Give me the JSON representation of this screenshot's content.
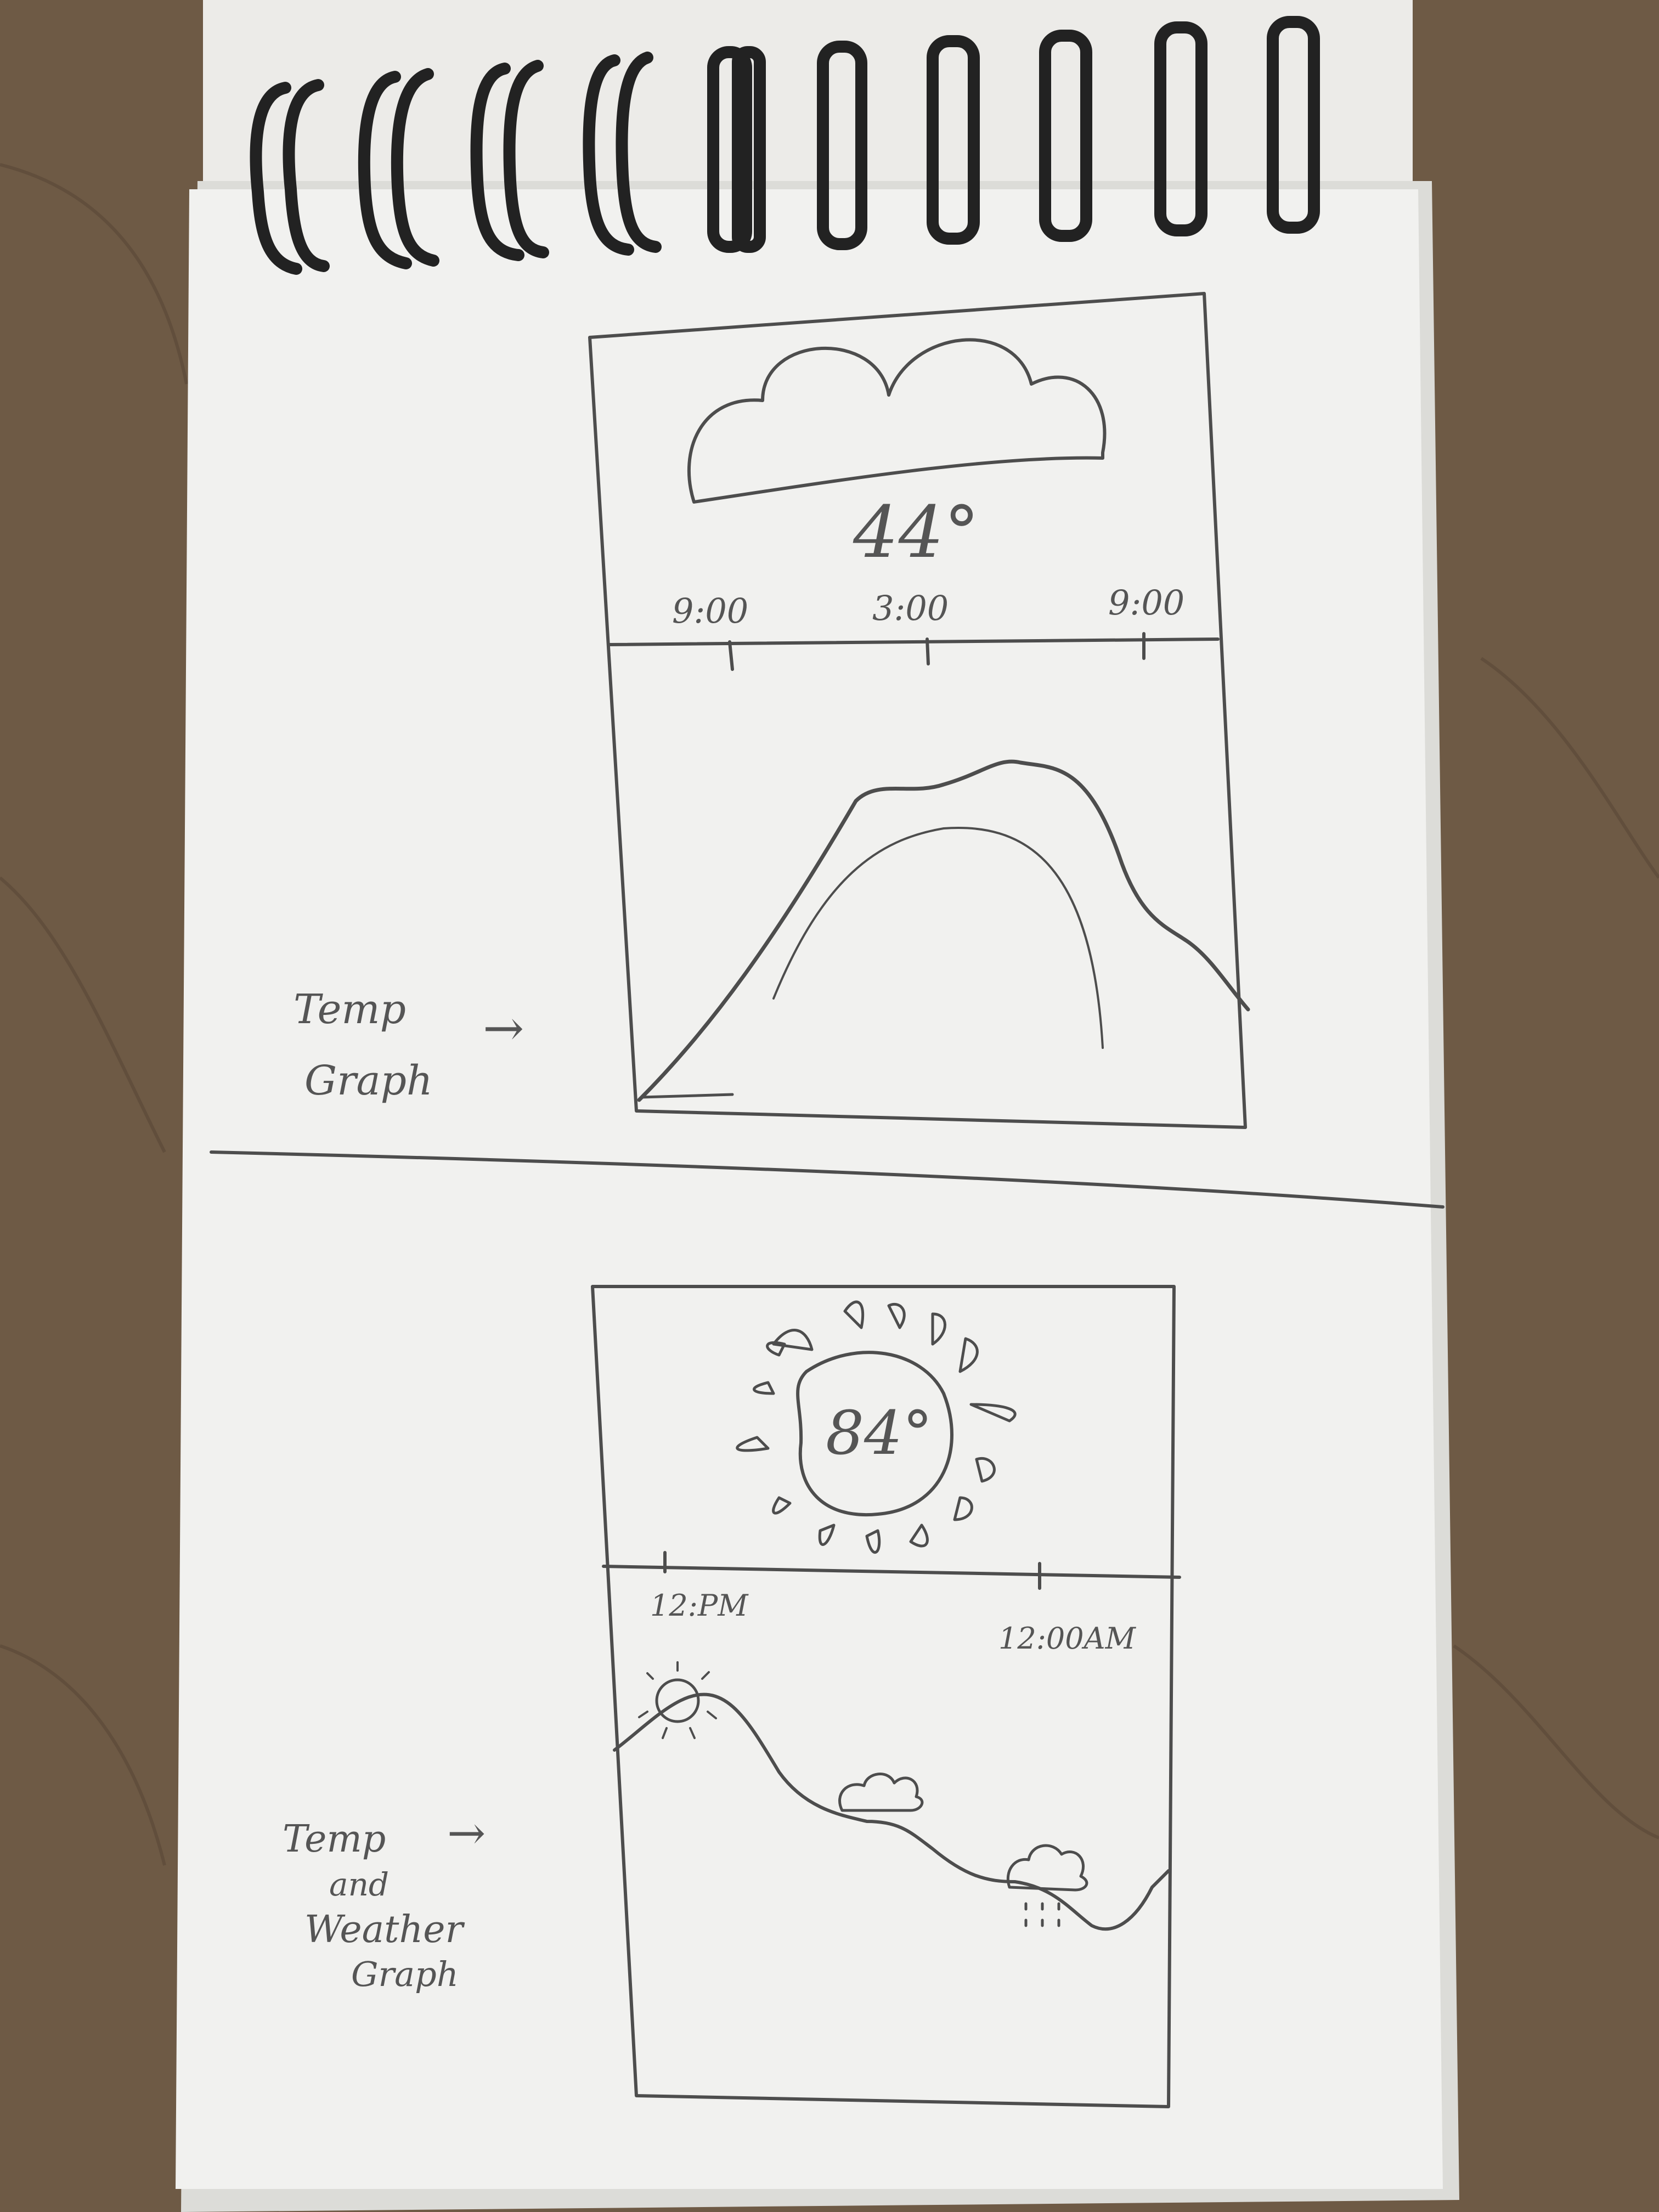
{
  "colors": {
    "desk": "#6e5a45",
    "desk_dark": "#4a3a2c",
    "paper": "#f1f1ef",
    "paper_shadow": "#dcdcd8",
    "pencil": "#4d4d4d",
    "binding": "#222222"
  },
  "sketch_top": {
    "temperature": "44°",
    "time_labels": [
      "9:00",
      "3:00",
      "9:00"
    ],
    "annotation_line1": "Temp",
    "annotation_line2": "Graph",
    "annotation_arrow": "→"
  },
  "sketch_bottom": {
    "temperature": "84°",
    "time_labels": [
      "12:PM",
      "12:00AM"
    ],
    "annotation_line1": "Temp",
    "annotation_line2": "and",
    "annotation_line3": "Weather",
    "annotation_line4": "Graph",
    "annotation_arrow": "→"
  }
}
